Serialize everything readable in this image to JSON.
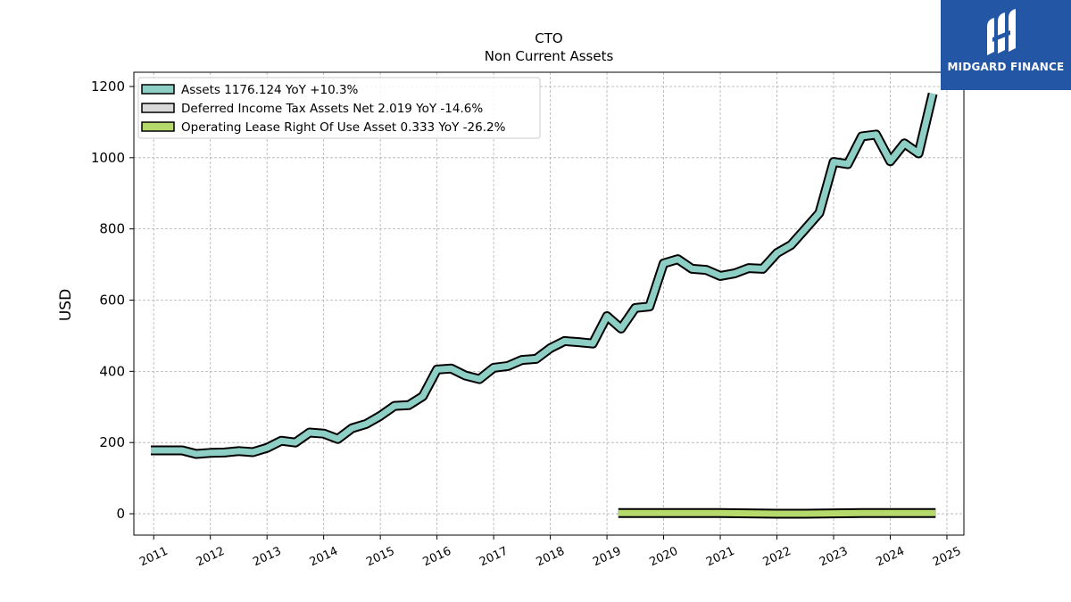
{
  "brand": {
    "name": "MIDGARD FINANCE",
    "bg_color": "#2456a6"
  },
  "chart_data": {
    "type": "line",
    "title": "CTO",
    "subtitle": "Non Current  Assets",
    "ylabel": "USD",
    "xlabel": "",
    "xlim": [
      2010.65,
      2025.3
    ],
    "ylim": [
      -60,
      1240
    ],
    "y_ticks": [
      0,
      200,
      400,
      600,
      800,
      1000,
      1200
    ],
    "x_ticks": [
      2011,
      2012,
      2013,
      2014,
      2015,
      2016,
      2017,
      2018,
      2019,
      2020,
      2021,
      2022,
      2023,
      2024,
      2025
    ],
    "grid": true,
    "legend_position": "top-left",
    "series": [
      {
        "name": "Assets",
        "legend_label": "Assets  1176.124 YoY +10.3%",
        "color": "#8ecfc5",
        "x": [
          2010.95,
          2011.2,
          2011.5,
          2011.75,
          2012.0,
          2012.25,
          2012.5,
          2012.75,
          2013.0,
          2013.25,
          2013.5,
          2013.75,
          2014.0,
          2014.25,
          2014.5,
          2014.75,
          2015.0,
          2015.25,
          2015.5,
          2015.75,
          2016.0,
          2016.25,
          2016.5,
          2016.75,
          2017.0,
          2017.25,
          2017.5,
          2017.75,
          2018.0,
          2018.25,
          2018.5,
          2018.75,
          2019.0,
          2019.25,
          2019.5,
          2019.75,
          2020.0,
          2020.25,
          2020.5,
          2020.75,
          2021.0,
          2021.25,
          2021.5,
          2021.75,
          2022.0,
          2022.25,
          2022.5,
          2022.75,
          2023.0,
          2023.25,
          2023.5,
          2023.75,
          2024.0,
          2024.25,
          2024.5,
          2024.75
        ],
        "values": [
          178,
          178,
          178,
          168,
          171,
          172,
          176,
          173,
          185,
          205,
          200,
          228,
          225,
          210,
          240,
          252,
          275,
          303,
          305,
          330,
          405,
          408,
          388,
          378,
          410,
          415,
          432,
          435,
          465,
          485,
          482,
          478,
          555,
          520,
          578,
          582,
          703,
          715,
          688,
          685,
          668,
          675,
          690,
          688,
          732,
          755,
          800,
          845,
          988,
          982,
          1060,
          1065,
          990,
          1040,
          1012,
          1180
        ]
      },
      {
        "name": "Deferred Income Tax Assets Net",
        "legend_label": "Deferred Income Tax Assets Net  2.019 YoY -14.6%",
        "color": "#d9d9d9",
        "x": [],
        "values": []
      },
      {
        "name": "Operating Lease Right Of Use Asset",
        "legend_label": "Operating Lease Right Of Use Asset  0.333 YoY -26.2%",
        "color": "#b5d96b",
        "x": [
          2019.2,
          2019.5,
          2020.0,
          2020.5,
          2021.0,
          2021.5,
          2022.0,
          2022.5,
          2023.0,
          2023.5,
          2024.0,
          2024.5,
          2024.8
        ],
        "values": [
          2,
          2,
          2,
          2,
          2,
          1,
          0,
          0,
          1,
          2,
          2,
          2,
          2
        ]
      }
    ]
  }
}
